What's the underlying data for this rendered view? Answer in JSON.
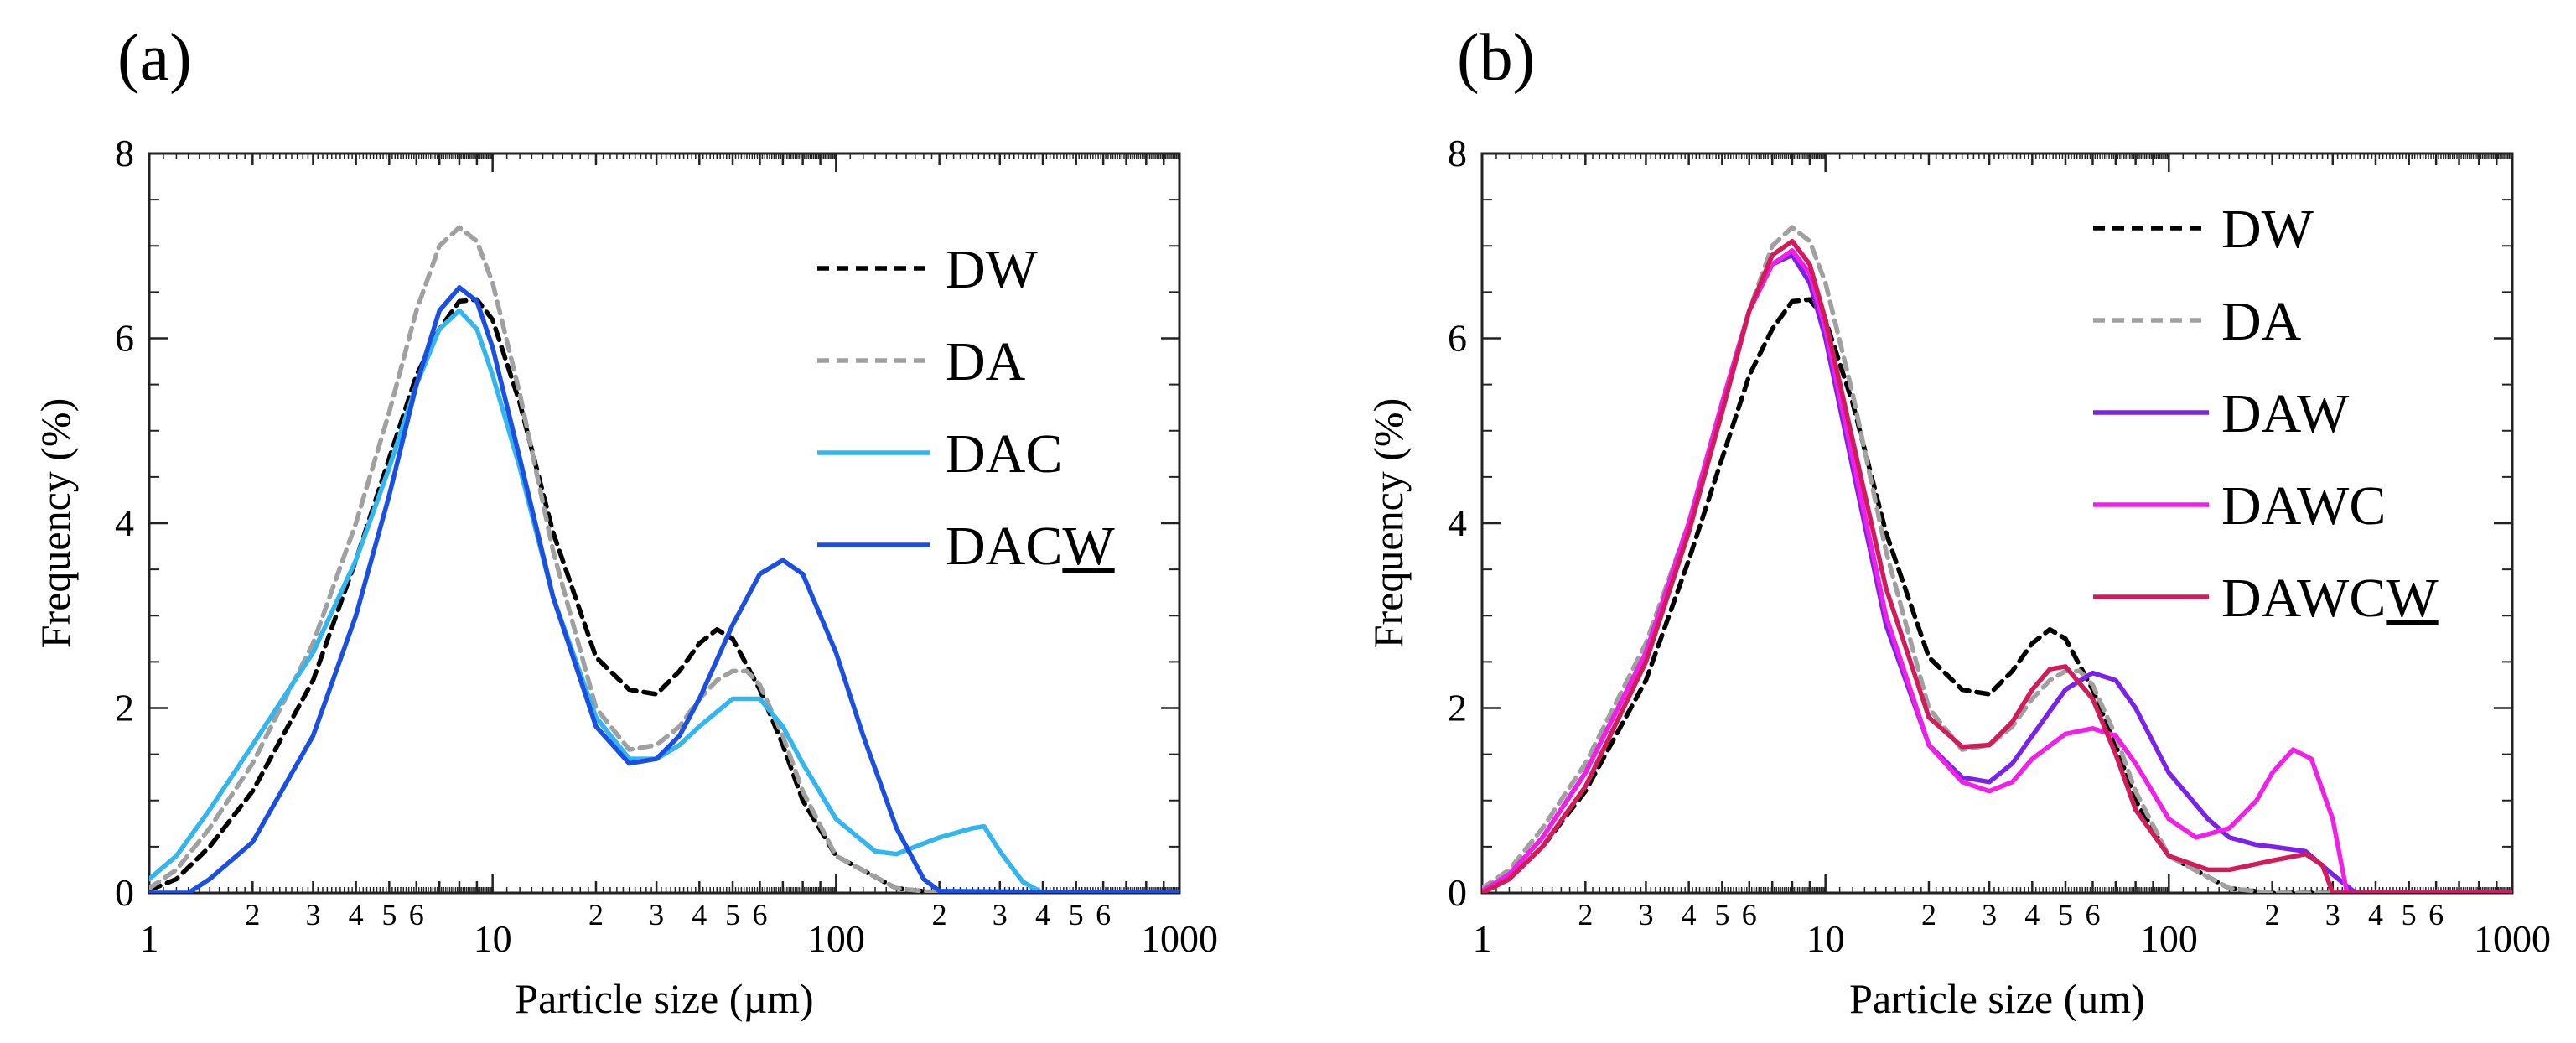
{
  "chart_data": [
    {
      "type": "line",
      "panel_label": "(a)",
      "xlabel": "Particle size (µm)",
      "ylabel": "Frequency (%)",
      "xscale": "log",
      "xlim": [
        1,
        1000
      ],
      "ylim": [
        0,
        8
      ],
      "x_major_ticks": [
        "1",
        "10",
        "100",
        "1000"
      ],
      "x_minor_tick_labels": [
        "2",
        "3",
        "4",
        "5",
        "6"
      ],
      "y_ticks": [
        "0",
        "2",
        "4",
        "6",
        "8"
      ],
      "legend_position": "top-right",
      "series": [
        {
          "name": "DW",
          "legend_text": "DW",
          "underline": "",
          "color": "#000000",
          "dash": "dashed",
          "x": [
            1,
            1.2,
            1.5,
            2,
            3,
            4,
            5,
            6,
            7,
            8,
            9,
            10,
            12,
            15,
            20,
            25,
            30,
            35,
            40,
            45,
            50,
            60,
            70,
            80,
            100,
            150,
            200,
            300,
            1000
          ],
          "y": [
            0.03,
            0.15,
            0.5,
            1.1,
            2.3,
            3.6,
            4.7,
            5.6,
            6.1,
            6.4,
            6.42,
            6.2,
            5.3,
            3.9,
            2.55,
            2.2,
            2.15,
            2.4,
            2.7,
            2.85,
            2.75,
            2.2,
            1.6,
            1.0,
            0.4,
            0.05,
            0.0,
            0.0,
            0.0
          ]
        },
        {
          "name": "DA",
          "legend_text": "DA",
          "underline": "",
          "color": "#a0a0a0",
          "dash": "dashed",
          "x": [
            1,
            1.2,
            1.5,
            2,
            3,
            4,
            5,
            6,
            7,
            8,
            9,
            10,
            12,
            15,
            20,
            25,
            30,
            35,
            40,
            45,
            50,
            55,
            60,
            70,
            80,
            100,
            150,
            200,
            1000
          ],
          "y": [
            0.05,
            0.25,
            0.7,
            1.4,
            2.7,
            4.0,
            5.2,
            6.3,
            7.0,
            7.2,
            7.05,
            6.6,
            5.4,
            3.7,
            2.0,
            1.55,
            1.6,
            1.8,
            2.1,
            2.3,
            2.4,
            2.4,
            2.25,
            1.7,
            1.1,
            0.4,
            0.05,
            0.0,
            0.0
          ]
        },
        {
          "name": "DAC",
          "legend_text": "DAC",
          "underline": "",
          "color": "#33b5f0",
          "dash": "solid",
          "x": [
            1,
            1.2,
            1.5,
            2,
            3,
            4,
            5,
            6,
            7,
            8,
            9,
            10,
            12,
            15,
            20,
            25,
            30,
            35,
            40,
            50,
            60,
            70,
            80,
            100,
            130,
            150,
            170,
            200,
            250,
            270,
            300,
            350,
            400,
            1000
          ],
          "y": [
            0.15,
            0.4,
            0.9,
            1.6,
            2.6,
            3.6,
            4.6,
            5.5,
            6.1,
            6.3,
            6.1,
            5.6,
            4.6,
            3.2,
            1.9,
            1.45,
            1.45,
            1.6,
            1.8,
            2.1,
            2.1,
            1.8,
            1.4,
            0.8,
            0.45,
            0.42,
            0.5,
            0.6,
            0.7,
            0.72,
            0.45,
            0.12,
            0.0,
            0.0
          ]
        },
        {
          "name": "DACW",
          "legend_text": "DAC",
          "underline": "W",
          "color": "#1a4fe0",
          "dash": "solid",
          "x": [
            1,
            1.3,
            1.5,
            2,
            3,
            4,
            5,
            6,
            7,
            8,
            9,
            10,
            12,
            15,
            20,
            25,
            30,
            35,
            40,
            50,
            60,
            70,
            80,
            100,
            120,
            150,
            180,
            200,
            1000
          ],
          "y": [
            0.0,
            0.0,
            0.15,
            0.55,
            1.7,
            3.0,
            4.3,
            5.5,
            6.3,
            6.55,
            6.4,
            5.9,
            4.7,
            3.2,
            1.8,
            1.4,
            1.45,
            1.7,
            2.1,
            2.9,
            3.45,
            3.6,
            3.45,
            2.6,
            1.7,
            0.7,
            0.15,
            0.02,
            0.0
          ]
        }
      ]
    },
    {
      "type": "line",
      "panel_label": "(b)",
      "xlabel": "Particle size (um)",
      "ylabel": "Frequency (%)",
      "xscale": "log",
      "xlim": [
        1,
        1000
      ],
      "ylim": [
        0,
        8
      ],
      "x_major_ticks": [
        "1",
        "10",
        "100",
        "1000"
      ],
      "x_minor_tick_labels": [
        "2",
        "3",
        "4",
        "5",
        "6"
      ],
      "y_ticks": [
        "0",
        "2",
        "4",
        "6",
        "8"
      ],
      "legend_position": "top-right",
      "series": [
        {
          "name": "DW",
          "legend_text": "DW",
          "underline": "",
          "color": "#000000",
          "dash": "dashed",
          "x": [
            1,
            1.2,
            1.5,
            2,
            3,
            4,
            5,
            6,
            7,
            8,
            9,
            10,
            12,
            15,
            20,
            25,
            30,
            35,
            40,
            45,
            50,
            60,
            70,
            80,
            100,
            150,
            200,
            300,
            1000
          ],
          "y": [
            0.03,
            0.15,
            0.5,
            1.1,
            2.3,
            3.6,
            4.7,
            5.6,
            6.1,
            6.4,
            6.42,
            6.2,
            5.3,
            3.9,
            2.55,
            2.2,
            2.15,
            2.4,
            2.7,
            2.85,
            2.75,
            2.2,
            1.6,
            1.0,
            0.4,
            0.05,
            0.0,
            0.0,
            0.0
          ]
        },
        {
          "name": "DA",
          "legend_text": "DA",
          "underline": "",
          "color": "#a0a0a0",
          "dash": "dashed",
          "x": [
            1,
            1.2,
            1.5,
            2,
            3,
            4,
            5,
            6,
            7,
            8,
            9,
            10,
            12,
            15,
            20,
            25,
            30,
            35,
            40,
            45,
            50,
            55,
            60,
            70,
            80,
            100,
            150,
            200,
            1000
          ],
          "y": [
            0.05,
            0.25,
            0.7,
            1.4,
            2.7,
            4.0,
            5.2,
            6.3,
            7.0,
            7.2,
            7.05,
            6.6,
            5.4,
            3.7,
            2.0,
            1.55,
            1.6,
            1.8,
            2.1,
            2.3,
            2.4,
            2.4,
            2.25,
            1.7,
            1.1,
            0.4,
            0.05,
            0.0,
            0.0
          ]
        },
        {
          "name": "DAW",
          "legend_text": "DAW",
          "underline": "",
          "color": "#7a22e8",
          "dash": "solid",
          "x": [
            1,
            1.2,
            1.5,
            2,
            3,
            4,
            5,
            6,
            7,
            8,
            9,
            10,
            12,
            15,
            20,
            25,
            30,
            35,
            40,
            50,
            60,
            70,
            80,
            100,
            130,
            150,
            180,
            200,
            250,
            300,
            350,
            1000
          ],
          "y": [
            0.02,
            0.2,
            0.6,
            1.3,
            2.6,
            4.0,
            5.3,
            6.3,
            6.8,
            6.9,
            6.6,
            6.0,
            4.6,
            2.9,
            1.6,
            1.25,
            1.2,
            1.4,
            1.7,
            2.2,
            2.38,
            2.3,
            2.0,
            1.3,
            0.8,
            0.6,
            0.52,
            0.5,
            0.45,
            0.2,
            0.0,
            0.0
          ]
        },
        {
          "name": "DAWC",
          "legend_text": "DAWC",
          "underline": "",
          "color": "#f020e6",
          "dash": "solid",
          "x": [
            1,
            1.2,
            1.5,
            2,
            3,
            4,
            5,
            6,
            7,
            8,
            9,
            10,
            12,
            15,
            20,
            25,
            30,
            35,
            40,
            50,
            60,
            70,
            80,
            100,
            120,
            150,
            180,
            200,
            230,
            260,
            300,
            330,
            1000
          ],
          "y": [
            0.02,
            0.2,
            0.6,
            1.3,
            2.6,
            4.0,
            5.3,
            6.3,
            6.8,
            6.95,
            6.7,
            6.1,
            4.7,
            3.0,
            1.6,
            1.2,
            1.1,
            1.2,
            1.45,
            1.72,
            1.78,
            1.7,
            1.4,
            0.8,
            0.6,
            0.7,
            1.0,
            1.3,
            1.55,
            1.45,
            0.8,
            0.0,
            0.0
          ]
        },
        {
          "name": "DAWCW",
          "legend_text": "DAWC",
          "underline": "W",
          "color": "#d01c5a",
          "dash": "solid",
          "x": [
            1,
            1.2,
            1.5,
            2,
            3,
            4,
            5,
            6,
            7,
            8,
            9,
            10,
            12,
            15,
            20,
            25,
            30,
            35,
            40,
            45,
            50,
            60,
            70,
            80,
            100,
            130,
            150,
            200,
            250,
            280,
            300,
            1000
          ],
          "y": [
            0.0,
            0.15,
            0.5,
            1.15,
            2.5,
            3.9,
            5.2,
            6.3,
            6.9,
            7.05,
            6.8,
            6.2,
            4.9,
            3.3,
            1.9,
            1.58,
            1.6,
            1.85,
            2.2,
            2.42,
            2.45,
            2.1,
            1.5,
            0.9,
            0.4,
            0.25,
            0.25,
            0.35,
            0.42,
            0.3,
            0.0,
            0.0
          ]
        }
      ]
    }
  ]
}
